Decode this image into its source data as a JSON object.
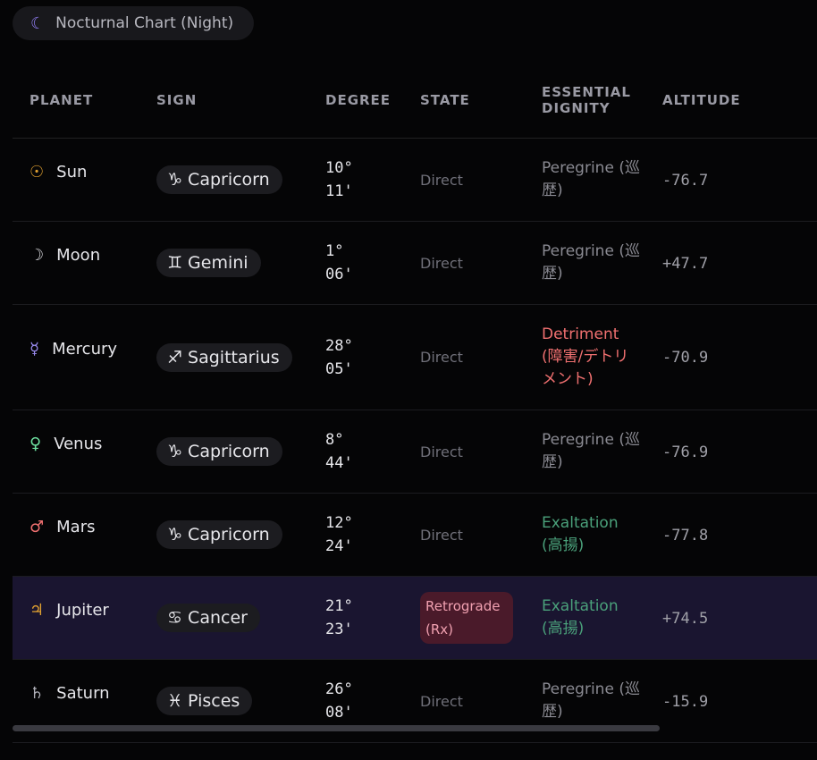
{
  "header": {
    "icon": "☾",
    "title": "Nocturnal Chart (Night)"
  },
  "table": {
    "columns": [
      "PLANET",
      "SIGN",
      "DEGREE",
      "STATE",
      "ESSENTIAL DIGNITY",
      "ALTITUDE"
    ],
    "rows": [
      {
        "glyph": "☉",
        "glyph_color": "#e0a030",
        "planet": "Sun",
        "sign_icon": "♑",
        "sign": "Capricorn",
        "degree": "10° 11'",
        "state": "Direct",
        "dignity": "Peregrine (巡歴)",
        "dignity_color": "#8a8a92",
        "altitude": "-76.7"
      },
      {
        "glyph": "☽",
        "glyph_color": "#d8d8dc",
        "planet": "Moon",
        "sign_icon": "♊",
        "sign": "Gemini",
        "degree": "1° 06'",
        "state": "Direct",
        "dignity": "Peregrine (巡歴)",
        "dignity_color": "#8a8a92",
        "altitude": "+47.7"
      },
      {
        "glyph": "☿",
        "glyph_color": "#9b8cf0",
        "planet": "Mercury",
        "sign_icon": "♐",
        "sign": "Sagittarius",
        "degree": "28° 05'",
        "state": "Direct",
        "dignity": "Detriment (障害/デトリメント)",
        "dignity_color": "#f07070",
        "altitude": "-70.9"
      },
      {
        "glyph": "♀",
        "glyph_color": "#6ee0a0",
        "planet": "Venus",
        "sign_icon": "♑",
        "sign": "Capricorn",
        "degree": "8° 44'",
        "state": "Direct",
        "dignity": "Peregrine (巡歴)",
        "dignity_color": "#8a8a92",
        "altitude": "-76.9"
      },
      {
        "glyph": "♂",
        "glyph_color": "#f07070",
        "planet": "Mars",
        "sign_icon": "♑",
        "sign": "Capricorn",
        "degree": "12° 24'",
        "state": "Direct",
        "dignity": "Exaltation (高揚)",
        "dignity_color": "#4aa07a",
        "altitude": "-77.8"
      },
      {
        "glyph": "♃",
        "glyph_color": "#e0a030",
        "planet": "Jupiter",
        "sign_icon": "♋",
        "sign": "Cancer",
        "degree": "21° 23'",
        "state": "Retrograde (Rx)",
        "retrograde": true,
        "highlight": true,
        "dignity": "Exaltation (高揚)",
        "dignity_color": "#4aa07a",
        "altitude": "+74.5"
      },
      {
        "glyph": "♄",
        "glyph_color": "#b0b0b8",
        "planet": "Saturn",
        "sign_icon": "♓",
        "sign": "Pisces",
        "degree": "26° 08'",
        "state": "Direct",
        "dignity": "Peregrine (巡歴)",
        "dignity_color": "#8a8a92",
        "altitude": "-15.9"
      }
    ]
  }
}
